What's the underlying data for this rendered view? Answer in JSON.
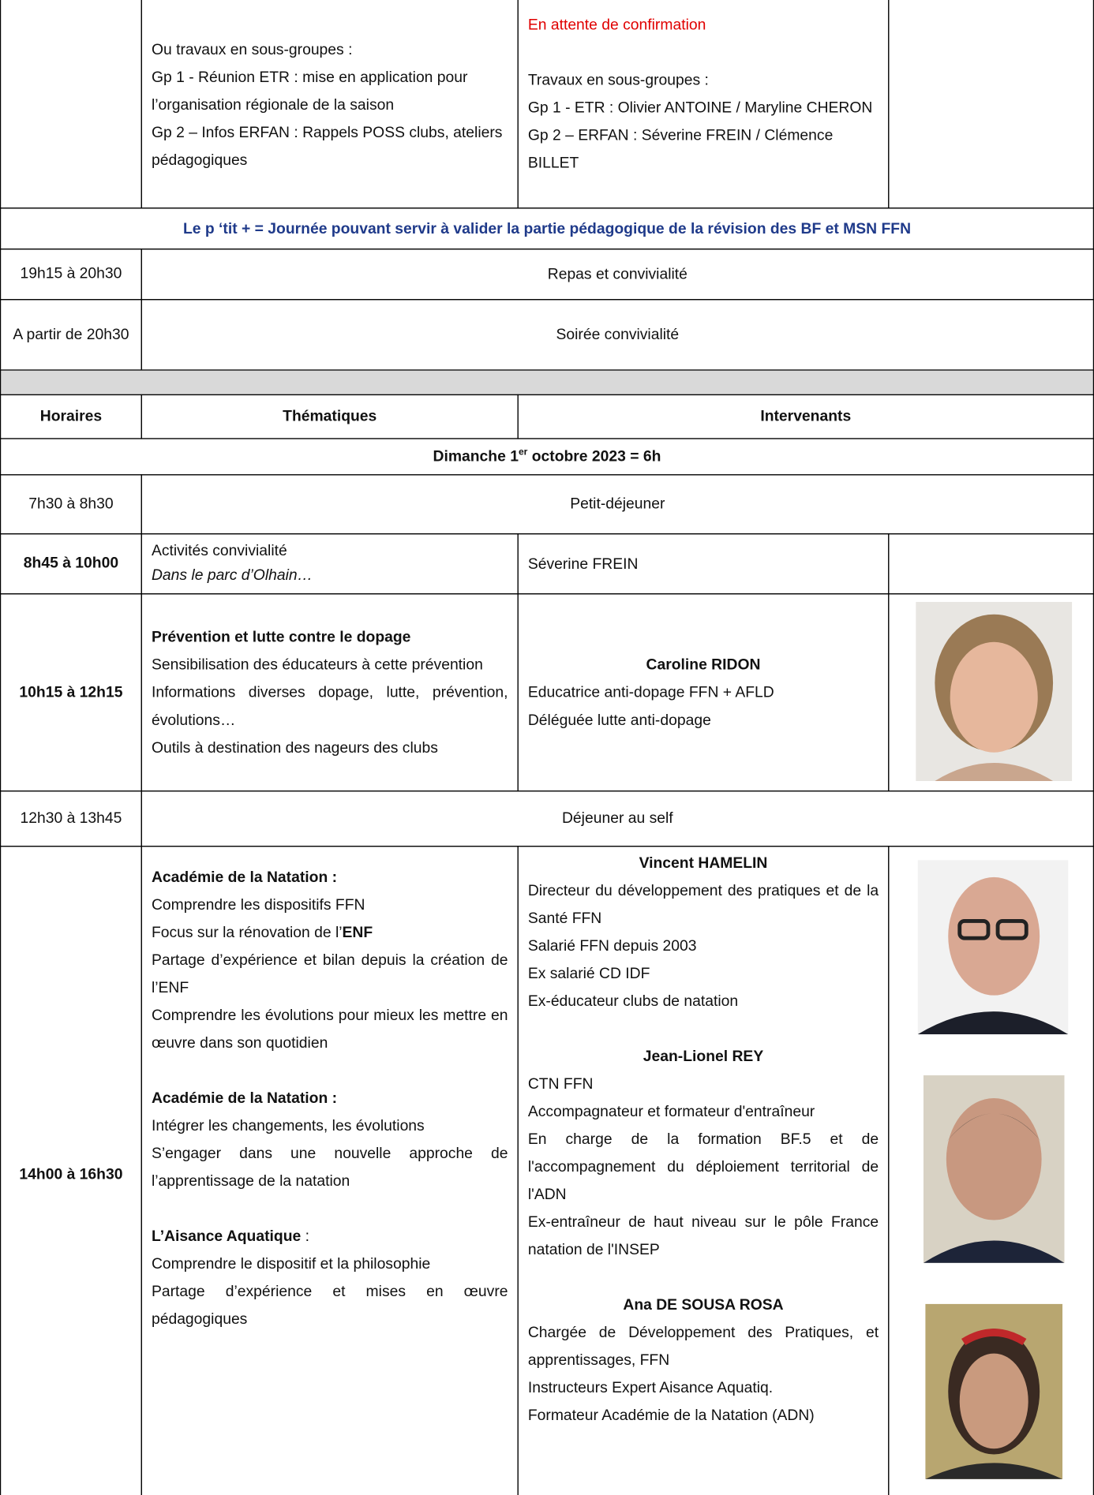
{
  "top_row": {
    "topics": [
      "Ou travaux en sous-groupes :",
      "Gp 1 - Réunion ETR : mise en application pour l’organisation régionale de la saison",
      "Gp 2 – Infos ERFAN : Rappels POSS clubs, ateliers pédagogiques"
    ],
    "speakers": [
      "En attente de confirmation",
      "Travaux en sous-groupes :",
      "Gp 1 - ETR : Olivier ANTOINE / Maryline CHERON",
      "Gp 2 – ERFAN : Séverine FREIN / Clémence BILLET"
    ]
  },
  "banner": "Le p ‘tit + = Journée pouvant servir à valider la partie pédagogique de la révision des BF et MSN FFN",
  "evening": [
    {
      "time": "19h15 à 20h30",
      "activity": "Repas et convivialité"
    },
    {
      "time": "A partir de 20h30",
      "activity": "Soirée convivialité"
    }
  ],
  "header": [
    "Horaires",
    "Thématiques",
    "Intervenants"
  ],
  "day": [
    "Dimanche 1",
    "er",
    " octobre 2023 = 6h"
  ],
  "breakfast": {
    "time": "7h30 à 8h30",
    "activity": "Petit-déjeuner"
  },
  "activities": {
    "time": "8h45 à 10h00",
    "topics": [
      "Activités convivialité",
      "Dans le parc d’Olhain…"
    ],
    "speaker": "Séverine FREIN"
  },
  "doping": {
    "time": "10h15 à 12h15",
    "title": "Prévention et lutte contre le dopage",
    "topics": [
      "Sensibilisation des éducateurs à cette prévention",
      "Informations diverses dopage, lutte, prévention, évolutions…",
      "Outils à destination des nageurs des clubs"
    ],
    "speaker": "Caroline RIDON",
    "roles": [
      "Educatrice anti-dopage FFN + AFLD",
      "Déléguée lutte anti-dopage"
    ]
  },
  "lunch": {
    "time": "12h30 à 13h45",
    "activity": "Déjeuner au self"
  },
  "afternoon": {
    "time": "14h00 à 16h30",
    "blocks": [
      {
        "title": "Académie de la Natation :",
        "items": [
          "Comprendre les dispositifs FFN",
          [
            "Focus sur la rénovation de l’",
            "ENF"
          ],
          "Partage d’expérience et bilan depuis la création de l’ENF",
          "Comprendre les évolutions pour mieux les mettre en œuvre dans son quotidien"
        ]
      },
      {
        "title": "Académie de la Natation :",
        "items": [
          "Intégrer les changements, les évolutions",
          "S’engager dans une nouvelle approche de l’apprentissage de la natation"
        ]
      },
      {
        "title": [
          "L’Aisance Aquatique",
          " :"
        ],
        "items": [
          "Comprendre le dispositif et la philosophie",
          "Partage d’expérience et mises en œuvre pédagogiques"
        ]
      }
    ],
    "speakers": [
      {
        "name": "Vincent HAMELIN",
        "roles": [
          "Directeur du développement des pratiques et de la Santé FFN",
          "Salarié FFN depuis 2003",
          "Ex salarié CD IDF",
          "Ex-éducateur clubs de natation"
        ]
      },
      {
        "name": "Jean-Lionel REY",
        "roles": [
          "CTN FFN",
          "Accompagnateur et formateur d'entraîneur",
          "En charge de la formation BF.5 et de l'accompagnement du déploiement territorial de l'ADN",
          "Ex-entraîneur de haut niveau sur le pôle France natation de l'INSEP"
        ]
      },
      {
        "name": "Ana DE SOUSA ROSA",
        "roles": [
          "Chargée de Développement des Pratiques, et apprentissages, FFN",
          "Instructeurs Expert Aisance Aquatiq.",
          "Formateur Académie de la Natation (ADN)"
        ]
      }
    ]
  }
}
